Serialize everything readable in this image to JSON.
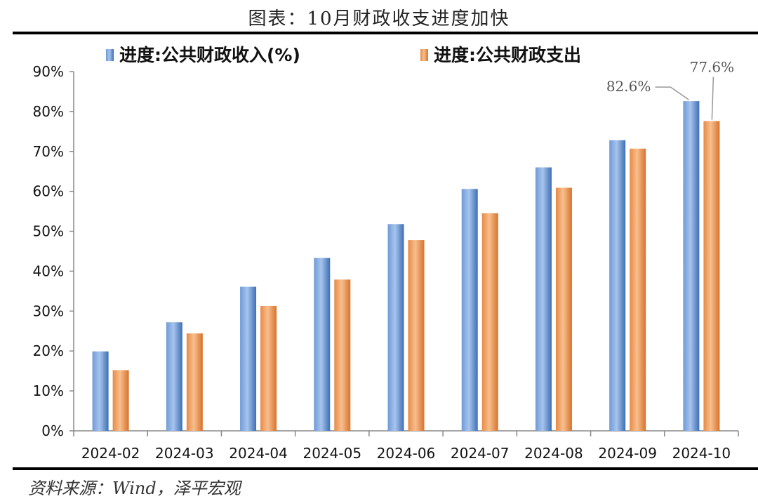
{
  "title": "图表：10月财政收支进度加快",
  "source": "资料来源：Wind，泽平宏观",
  "colors": {
    "revenue": "#4a7ec4",
    "expenditure": "#e8823a",
    "axis": "#888888"
  },
  "chart_data": {
    "type": "bar",
    "categories": [
      "2024-02",
      "2024-03",
      "2024-04",
      "2024-05",
      "2024-06",
      "2024-07",
      "2024-08",
      "2024-09",
      "2024-10"
    ],
    "series": [
      {
        "name": "进度:公共财政收入(%)",
        "values": [
          19.9,
          27.2,
          36.1,
          43.3,
          51.8,
          60.6,
          66.0,
          72.8,
          82.6
        ]
      },
      {
        "name": "进度:公共财政支出",
        "values": [
          15.2,
          24.4,
          31.3,
          37.9,
          47.8,
          54.5,
          60.9,
          70.7,
          77.6
        ]
      }
    ],
    "ylim": [
      0,
      90
    ],
    "yticks": [
      0,
      10,
      20,
      30,
      40,
      50,
      60,
      70,
      80,
      90
    ],
    "ytick_labels": [
      "0%",
      "10%",
      "20%",
      "30%",
      "40%",
      "50%",
      "60%",
      "70%",
      "80%",
      "90%"
    ],
    "annotations": [
      {
        "series": 0,
        "category": "2024-10",
        "text": "82.6%"
      },
      {
        "series": 1,
        "category": "2024-10",
        "text": "77.6%"
      }
    ],
    "legend": "top",
    "grid": false
  }
}
